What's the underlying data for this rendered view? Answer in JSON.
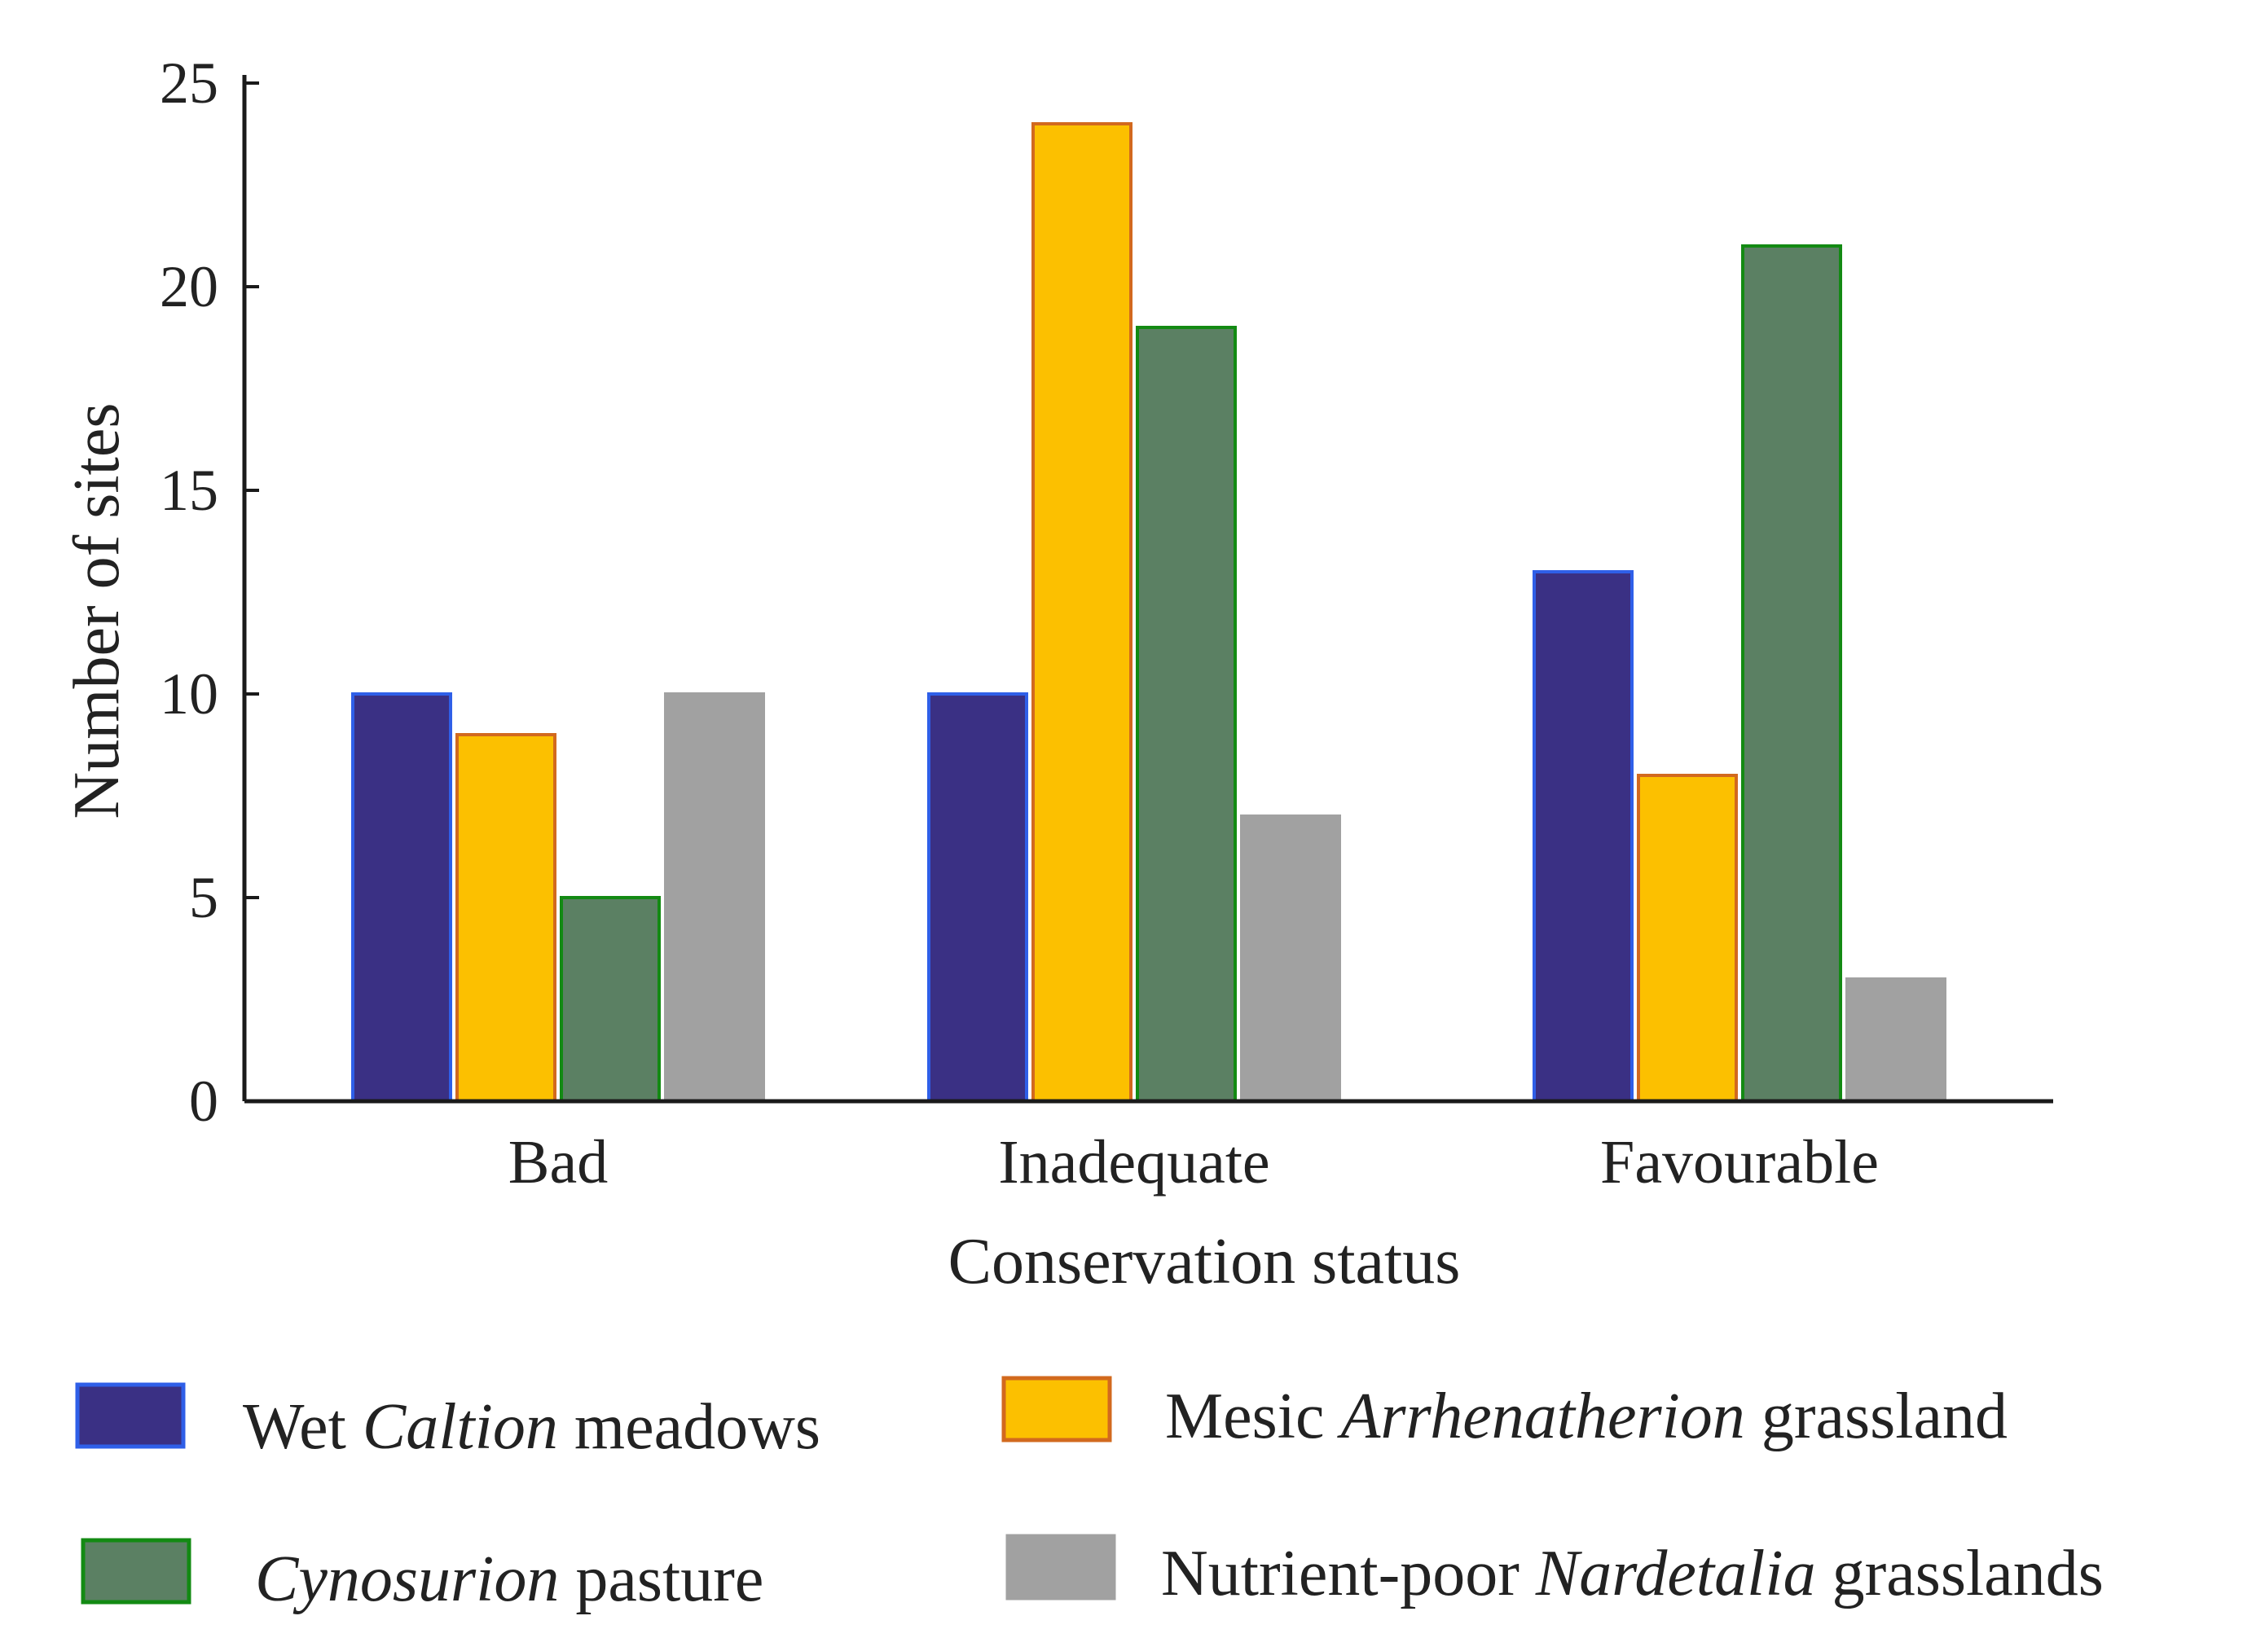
{
  "chart_data": {
    "type": "bar",
    "title": "",
    "xlabel": "Conservation status",
    "ylabel": "Number of sites",
    "ylim": [
      0,
      25
    ],
    "yticks": [
      0,
      5,
      10,
      15,
      20,
      25
    ],
    "grid": false,
    "legend_position": "bottom",
    "categories": [
      "Bad",
      "Inadequate",
      "Favourable"
    ],
    "series": [
      {
        "name": "Wet Caltion meadows",
        "name_parts": [
          {
            "text": "Wet ",
            "italic": false
          },
          {
            "text": "Caltion",
            "italic": true
          },
          {
            "text": " meadows",
            "italic": false
          }
        ],
        "values": [
          10,
          10,
          13
        ],
        "fill": "#3a3084",
        "stroke": "#2f5fe8"
      },
      {
        "name": "Mesic Arrhenatherion grassland",
        "name_parts": [
          {
            "text": "Mesic ",
            "italic": false
          },
          {
            "text": "Arrhenatherion",
            "italic": true
          },
          {
            "text": " grassland",
            "italic": false
          }
        ],
        "values": [
          9,
          24,
          8
        ],
        "fill": "#fcc000",
        "stroke": "#d2691e"
      },
      {
        "name": "Cynosurion pasture",
        "name_parts": [
          {
            "text": "Cynosurion",
            "italic": true
          },
          {
            "text": " pasture",
            "italic": false
          }
        ],
        "values": [
          5,
          19,
          21
        ],
        "fill": "#5b8063",
        "stroke": "#138a13"
      },
      {
        "name": "Nutrient-poor Nardetalia grasslands",
        "name_parts": [
          {
            "text": "Nutrient-poor ",
            "italic": false
          },
          {
            "text": "Nardetalia",
            "italic": true
          },
          {
            "text": " grasslands",
            "italic": false
          }
        ],
        "values": [
          10,
          7,
          3
        ],
        "fill": "#a1a1a1",
        "stroke": "#a1a1a1"
      }
    ]
  }
}
